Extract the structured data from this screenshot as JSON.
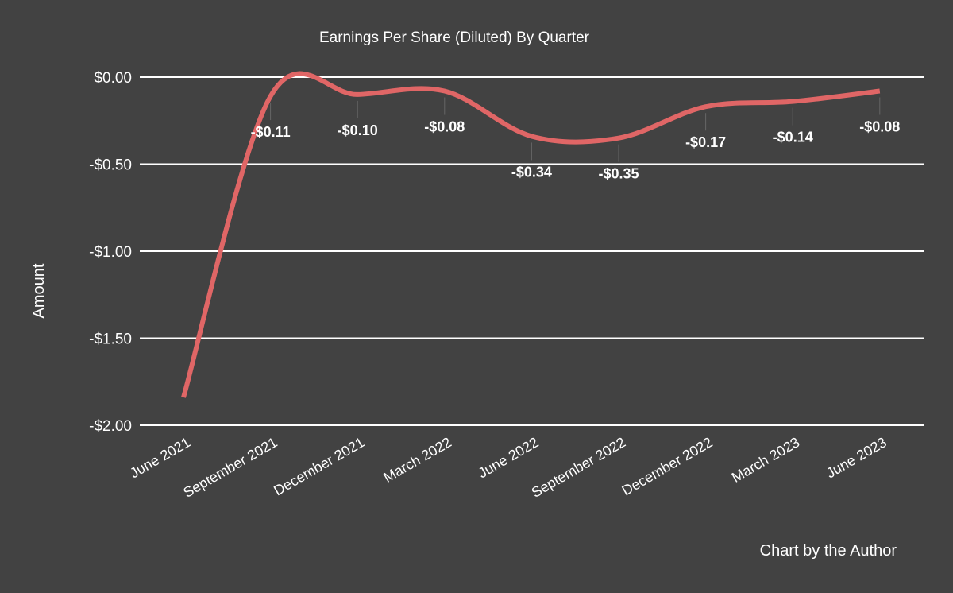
{
  "chart_data": {
    "type": "line",
    "title": "Earnings Per Share (Diluted) By Quarter",
    "xlabel": "",
    "ylabel": "Amount",
    "categories": [
      "June 2021",
      "September 2021",
      "December 2021",
      "March 2022",
      "June 2022",
      "September 2022",
      "December 2022",
      "March 2023",
      "June 2023"
    ],
    "values": [
      -1.84,
      -0.11,
      -0.1,
      -0.08,
      -0.34,
      -0.35,
      -0.17,
      -0.14,
      -0.08
    ],
    "data_labels": [
      null,
      "-$0.11",
      "-$0.10",
      "-$0.08",
      "-$0.34",
      "-$0.35",
      "-$0.17",
      "-$0.14",
      "-$0.08"
    ],
    "yticks": [
      0,
      -0.5,
      -1,
      -1.5,
      -2
    ],
    "ytick_labels": [
      "$0.00",
      "-$0.50",
      "-$1.00",
      "-$1.50",
      "-$2.00"
    ],
    "ylim": [
      -2,
      0
    ],
    "grid": true,
    "smooth": true,
    "line_color": "#e06666",
    "background_color": "#424242"
  },
  "footer": {
    "credit": "Chart by the Author"
  }
}
